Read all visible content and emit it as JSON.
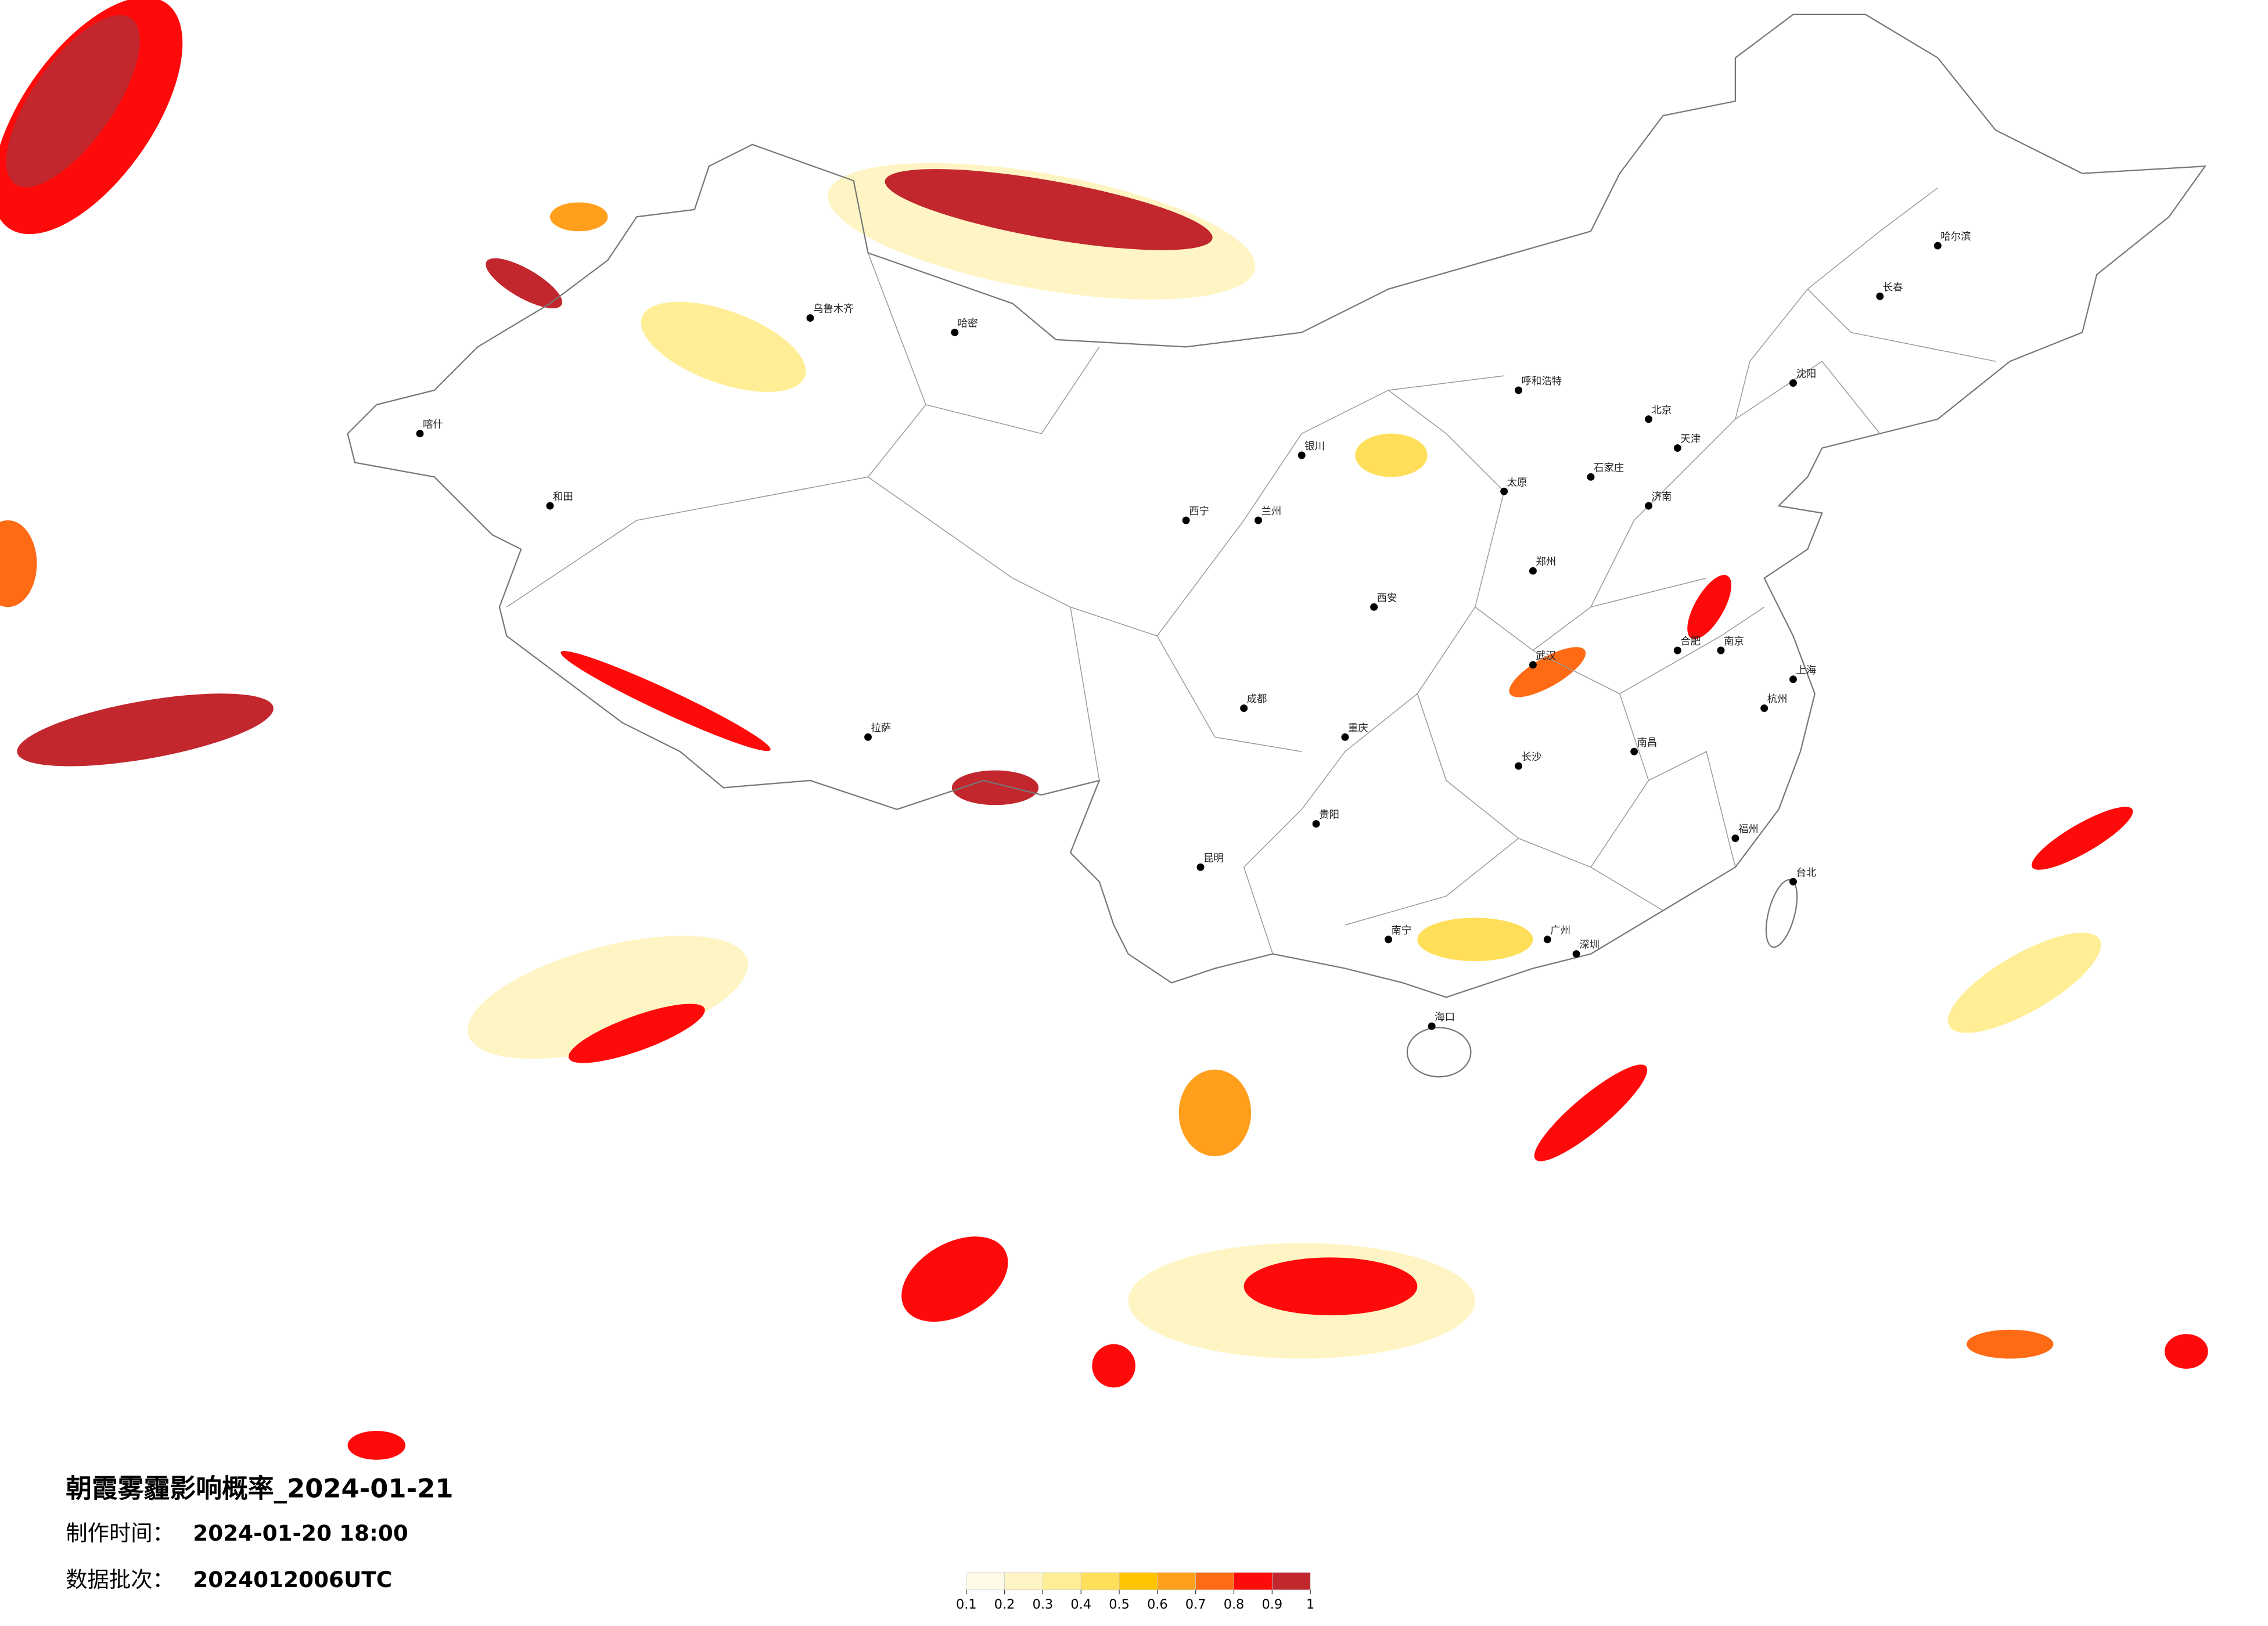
{
  "title": "朝霞雾霾影响概率_2024-01-21",
  "issue_label": "制作时间：",
  "issue_time": "2024-01-20 18:00",
  "batch_label": "数据批次：",
  "batch": "2024012006UTC",
  "legend": {
    "ticks": [
      0.1,
      0.2,
      0.3,
      0.4,
      0.5,
      0.6,
      0.7,
      0.8,
      0.9,
      1
    ],
    "colors": [
      "#fffbe8",
      "#fff5c4",
      "#ffee96",
      "#ffdf5a",
      "#ffc400",
      "#ff9f1c",
      "#ff6a14",
      "#ff0a0a",
      "#c1272d"
    ]
  },
  "regions": [
    {
      "value": 0.8
    },
    {
      "value": 1
    },
    {
      "value": 0.95
    },
    {
      "value": 1
    },
    {
      "value": 0.9
    },
    {
      "value": 0.9
    },
    {
      "value": 0.8
    },
    {
      "value": 0.8
    },
    {
      "value": 0.8
    },
    {
      "value": 0.85
    },
    {
      "value": 0.8
    },
    {
      "value": 0.8
    },
    {
      "value": 0.7
    },
    {
      "value": 0.85
    },
    {
      "value": 0.8
    },
    {
      "value": 0.6
    },
    {
      "value": 0.85
    },
    {
      "value": 0.4
    },
    {
      "value": 0.75
    },
    {
      "value": 0.7
    },
    {
      "value": 0.8
    },
    {
      "value": 0.4
    },
    {
      "value": 0.6
    },
    {
      "value": 0.2
    },
    {
      "value": 0.2
    },
    {
      "value": 0.3
    },
    {
      "value": 0.2
    },
    {
      "value": 0.3
    }
  ],
  "cities": [
    "北京",
    "天津",
    "上海",
    "广州",
    "深圳",
    "重庆",
    "成都",
    "武汉",
    "西安",
    "郑州",
    "南京",
    "杭州",
    "长沙",
    "昆明",
    "贵阳",
    "南宁",
    "福州",
    "南昌",
    "合肥",
    "济南",
    "石家庄",
    "太原",
    "呼和浩特",
    "沈阳",
    "长春",
    "哈尔滨",
    "拉萨",
    "乌鲁木齐",
    "兰州",
    "西宁",
    "银川",
    "海口",
    "台北",
    "哈密",
    "喀什",
    "和田"
  ]
}
